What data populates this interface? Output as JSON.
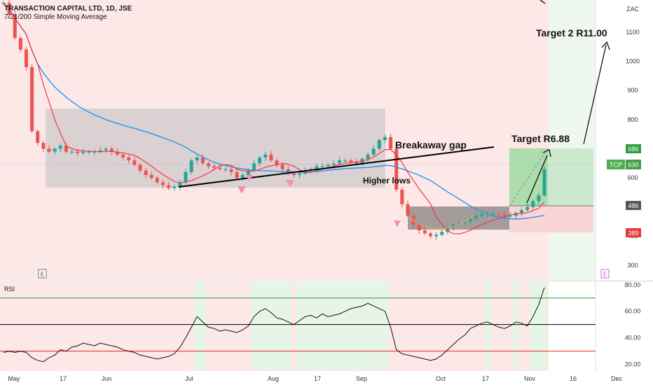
{
  "header": {
    "title": "TRANSACTION CAPITAL LTD, 1D, JSE",
    "indicator": "7/21/200 Simple Moving Average"
  },
  "currency": "ZAC",
  "rsi_label": "RSI",
  "earnings_marker": "E",
  "colors": {
    "bull": "#26a69a",
    "bear": "#ef5350",
    "sma_fast": "#f23645",
    "sma_slow": "#2196f3",
    "bg_bear": "#fde8e8",
    "bg_bull": "#e6f6e6",
    "rsi_line": "#111111",
    "rsi_upper": "#4caf50",
    "rsi_lower": "#e53935"
  },
  "chart_data": [
    {
      "type": "candlestick",
      "title": "TRANSACTION CAPITAL LTD, 1D, JSE",
      "x_tick_labels": [
        "May",
        "17",
        "Jun",
        "Jul",
        "Aug",
        "17",
        "Sep",
        "Oct",
        "17",
        "Nov",
        "16",
        "Dec"
      ],
      "y_tick_labels": [
        "300",
        "400",
        "500",
        "600",
        "700",
        "800",
        "900",
        "1000",
        "1100"
      ],
      "ylim": [
        250,
        1210
      ],
      "series": [
        {
          "name": "price",
          "close": [
            1200,
            1160,
            1080,
            1040,
            980,
            760,
            720,
            700,
            690,
            700,
            710,
            690,
            690,
            685,
            690,
            690,
            690,
            695,
            700,
            690,
            680,
            670,
            660,
            645,
            625,
            610,
            600,
            585,
            575,
            565,
            570,
            585,
            620,
            660,
            670,
            650,
            640,
            635,
            630,
            630,
            620,
            600,
            610,
            625,
            650,
            670,
            680,
            660,
            645,
            630,
            615,
            610,
            615,
            625,
            630,
            640,
            640,
            645,
            650,
            660,
            660,
            655,
            650,
            665,
            680,
            700,
            730,
            740,
            700,
            560,
            510,
            470,
            440,
            420,
            410,
            400,
            405,
            415,
            430,
            440,
            445,
            450,
            460,
            470,
            475,
            478,
            478,
            475,
            470,
            470,
            480,
            490,
            500,
            520,
            540,
            630
          ]
        },
        {
          "name": "SMA 7",
          "values": [
            1200,
            1180,
            1147,
            1120,
            1092,
            1037,
            991,
            920,
            861,
            800,
            753,
            710,
            700,
            695,
            692,
            692,
            690,
            690,
            691,
            691,
            688,
            686,
            682,
            677,
            667,
            654,
            640,
            625,
            612,
            599,
            588,
            583,
            586,
            591,
            599,
            607,
            617,
            630,
            641,
            645,
            643,
            630,
            625,
            623,
            624,
            629,
            637,
            641,
            645,
            650,
            647,
            640,
            628,
            619,
            619,
            624,
            631,
            636,
            640,
            646,
            650,
            653,
            655,
            658,
            663,
            671,
            684,
            697,
            698,
            678,
            653,
            619,
            591,
            563,
            537,
            511,
            466,
            440,
            418,
            409,
            408,
            413,
            421,
            430,
            440,
            448,
            455,
            462,
            467,
            473,
            476,
            478,
            481,
            488,
            496,
            518
          ]
        },
        {
          "name": "SMA 21",
          "values": [
            1200,
            1180,
            1147,
            1120,
            1092,
            1037,
            991,
            960,
            935,
            912,
            894,
            877,
            862,
            848,
            836,
            826,
            816,
            808,
            800,
            793,
            787,
            781,
            775,
            770,
            764,
            758,
            752,
            745,
            738,
            731,
            723,
            715,
            705,
            693,
            682,
            672,
            662,
            654,
            648,
            642,
            638,
            634,
            631,
            628,
            626,
            625,
            625,
            624,
            623,
            622,
            622,
            621,
            620,
            619,
            620,
            622,
            624,
            626,
            628,
            630,
            632,
            633,
            634,
            635,
            636,
            638,
            640,
            643,
            642,
            637,
            631,
            624,
            617,
            609,
            600,
            591,
            578,
            565,
            552,
            540,
            528,
            516,
            504,
            493,
            484,
            477,
            470,
            466,
            462,
            460,
            459,
            460,
            462,
            465,
            468,
            472
          ]
        }
      ]
    },
    {
      "type": "line",
      "title": "RSI",
      "x_tick_labels": [
        "May",
        "17",
        "Jun",
        "Jul",
        "Aug",
        "17",
        "Sep",
        "Oct",
        "17",
        "Nov",
        "16",
        "Dec"
      ],
      "y_tick_labels": [
        "20.00",
        "40.00",
        "60.00",
        "80.00"
      ],
      "ylim": [
        15,
        82
      ],
      "upper_band": 70,
      "lower_band": 30,
      "mid_line": 50,
      "series": [
        {
          "name": "RSI",
          "values": [
            29,
            30,
            29,
            30,
            29,
            25,
            23,
            22,
            25,
            27,
            31,
            30,
            33,
            34,
            36,
            35,
            34,
            36,
            35,
            34,
            33,
            31,
            30,
            29,
            27,
            26,
            25,
            24,
            25,
            26,
            28,
            33,
            40,
            48,
            56,
            52,
            48,
            47,
            45,
            46,
            45,
            44,
            46,
            49,
            56,
            60,
            62,
            59,
            55,
            54,
            52,
            50,
            53,
            56,
            57,
            55,
            58,
            56,
            57,
            58,
            60,
            62,
            63,
            64,
            66,
            64,
            62,
            60,
            48,
            31,
            28,
            27,
            26,
            25,
            24,
            23,
            24,
            27,
            31,
            35,
            39,
            42,
            47,
            49,
            51,
            52,
            50,
            48,
            47,
            49,
            52,
            51,
            49,
            56,
            65,
            78
          ]
        }
      ]
    }
  ],
  "annotations": {
    "breakaway": "Breakaway gap",
    "higher_lows": "Higher lows",
    "target1": "Target R6.88",
    "target2": "Target 2 R11.00"
  },
  "badges": {
    "upper": "686",
    "ticker": "TCP",
    "last": "630",
    "mid": "486",
    "lower": "389"
  }
}
